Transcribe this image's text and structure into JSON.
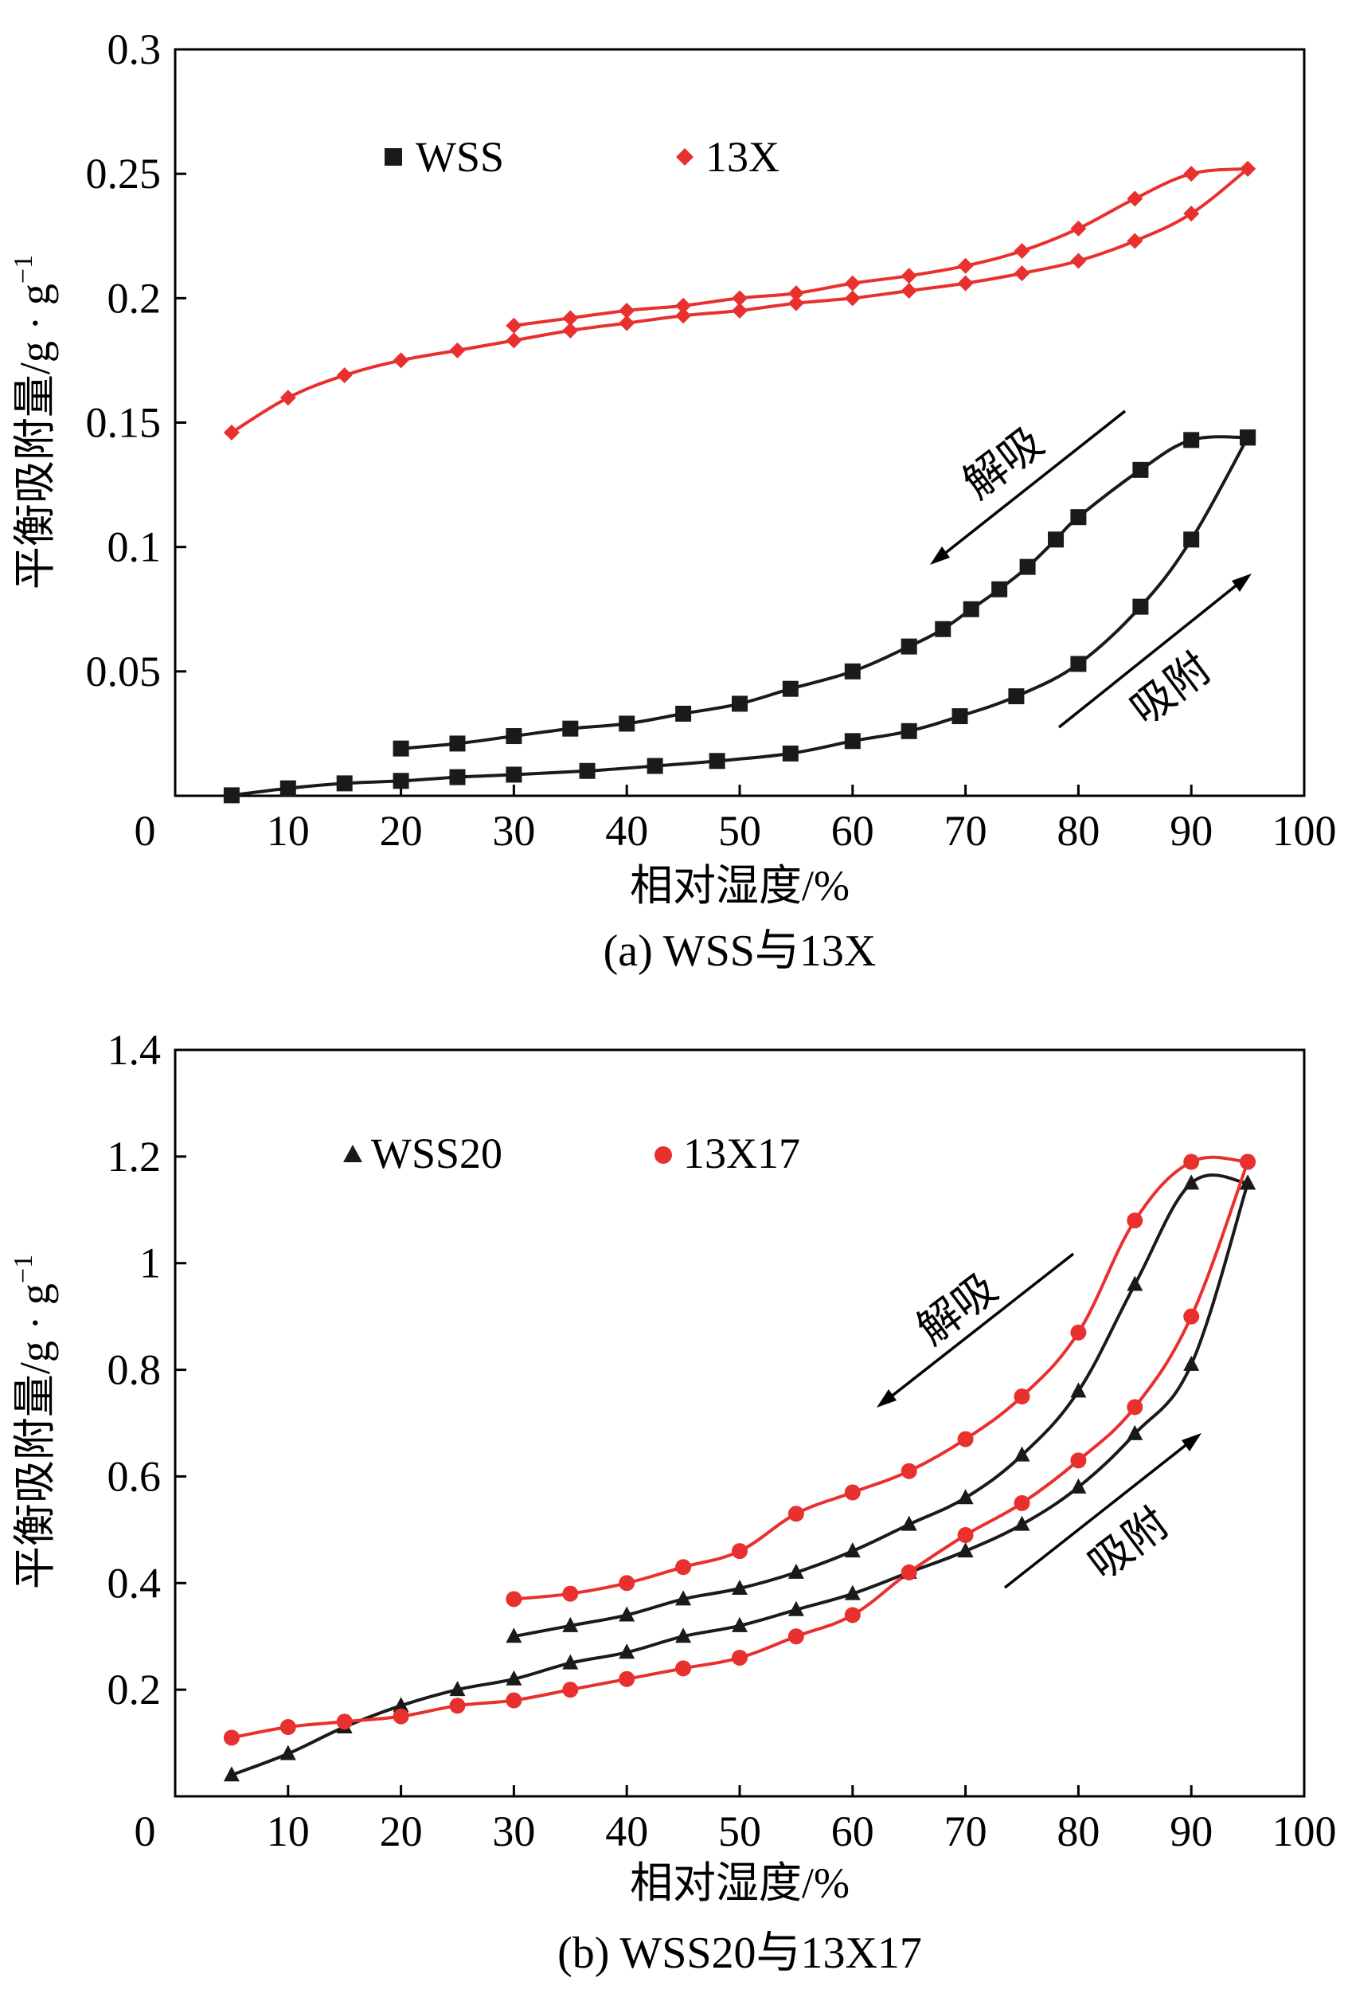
{
  "colors": {
    "black_series": "#1a1a1a",
    "red_series": "#e8302e",
    "axis": "#000000",
    "background": "#ffffff"
  },
  "chart_data": [
    {
      "id": "a",
      "type": "line",
      "caption": "(a) WSS与13X",
      "xlabel": "相对湿度/%",
      "ylabel": "平衡吸附量/g · g",
      "ylabel_superscript": "−1",
      "xlim": [
        0,
        100
      ],
      "ylim": [
        0,
        0.3
      ],
      "xticks": [
        "0",
        "10",
        "20",
        "30",
        "40",
        "50",
        "60",
        "70",
        "80",
        "90",
        "100"
      ],
      "yticks": [
        "0.05",
        "0.1",
        "0.15",
        "0.2",
        "0.25",
        "0.3"
      ],
      "ytick_values": [
        0.05,
        0.1,
        0.15,
        0.2,
        0.25,
        0.3
      ],
      "legend": [
        {
          "label": "WSS",
          "marker": "square",
          "color": "#1a1a1a"
        },
        {
          "label": "13X",
          "marker": "diamond",
          "color": "#e8302e"
        }
      ],
      "annotations": [
        {
          "text": "解吸",
          "arrow": "desorption",
          "direction": "down-left"
        },
        {
          "text": "吸附",
          "arrow": "adsorption",
          "direction": "up-right"
        }
      ],
      "series": [
        {
          "name": "WSS",
          "branch": "adsorption",
          "marker": "square",
          "color": "#1a1a1a",
          "x": [
            5,
            10,
            15,
            20,
            25,
            30,
            36.5,
            42.5,
            48,
            54.5,
            60,
            65,
            69.5,
            74.5,
            80,
            85.5,
            90,
            95
          ],
          "y": [
            0.0002,
            0.003,
            0.005,
            0.006,
            0.0075,
            0.0085,
            0.01,
            0.012,
            0.014,
            0.017,
            0.022,
            0.026,
            0.032,
            0.04,
            0.053,
            0.076,
            0.103,
            0.144
          ]
        },
        {
          "name": "WSS",
          "branch": "desorption",
          "marker": "square",
          "color": "#1a1a1a",
          "x": [
            95,
            90,
            85.5,
            80,
            78,
            75.5,
            73,
            70.5,
            68,
            65,
            60,
            54.5,
            50,
            45,
            40,
            35,
            30,
            25,
            20
          ],
          "y": [
            0.144,
            0.143,
            0.131,
            0.112,
            0.103,
            0.092,
            0.083,
            0.075,
            0.067,
            0.06,
            0.05,
            0.043,
            0.037,
            0.033,
            0.029,
            0.027,
            0.024,
            0.021,
            0.019
          ]
        },
        {
          "name": "13X",
          "branch": "adsorption",
          "marker": "diamond",
          "color": "#e8302e",
          "x": [
            5,
            10,
            15,
            20,
            25,
            30,
            35,
            40,
            45,
            50,
            55,
            60,
            65,
            70,
            75,
            80,
            85,
            90,
            95
          ],
          "y": [
            0.146,
            0.16,
            0.169,
            0.175,
            0.179,
            0.183,
            0.187,
            0.19,
            0.193,
            0.195,
            0.198,
            0.2,
            0.203,
            0.206,
            0.21,
            0.215,
            0.223,
            0.234,
            0.252
          ]
        },
        {
          "name": "13X",
          "branch": "desorption",
          "marker": "diamond",
          "color": "#e8302e",
          "x": [
            95,
            90,
            85,
            80,
            75,
            70,
            65,
            60,
            55,
            50,
            45,
            40,
            35,
            30
          ],
          "y": [
            0.252,
            0.25,
            0.24,
            0.228,
            0.219,
            0.213,
            0.209,
            0.206,
            0.202,
            0.2,
            0.197,
            0.195,
            0.192,
            0.189
          ]
        }
      ]
    },
    {
      "id": "b",
      "type": "line",
      "caption": "(b) WSS20与13X17",
      "xlabel": "相对湿度/%",
      "ylabel": "平衡吸附量/g · g",
      "ylabel_superscript": "−1",
      "xlim": [
        0,
        100
      ],
      "ylim": [
        0,
        1.4
      ],
      "xticks": [
        "0",
        "10",
        "20",
        "30",
        "40",
        "50",
        "60",
        "70",
        "80",
        "90",
        "100"
      ],
      "yticks": [
        "0.2",
        "0.4",
        "0.6",
        "0.8",
        "1",
        "1.2",
        "1.4"
      ],
      "ytick_values": [
        0.2,
        0.4,
        0.6,
        0.8,
        1.0,
        1.2,
        1.4
      ],
      "legend": [
        {
          "label": "WSS20",
          "marker": "triangle",
          "color": "#1a1a1a"
        },
        {
          "label": "13X17",
          "marker": "circle",
          "color": "#e8302e"
        }
      ],
      "annotations": [
        {
          "text": "解吸",
          "arrow": "desorption",
          "direction": "down-left"
        },
        {
          "text": "吸附",
          "arrow": "adsorption",
          "direction": "up-right"
        }
      ],
      "series": [
        {
          "name": "WSS20",
          "branch": "adsorption",
          "marker": "triangle",
          "color": "#1a1a1a",
          "x": [
            5,
            10,
            15,
            20,
            25,
            30,
            35,
            40,
            45,
            50,
            55,
            60,
            65,
            70,
            75,
            80,
            85,
            90,
            95
          ],
          "y": [
            0.04,
            0.08,
            0.13,
            0.17,
            0.2,
            0.22,
            0.25,
            0.27,
            0.3,
            0.32,
            0.35,
            0.38,
            0.42,
            0.46,
            0.51,
            0.58,
            0.68,
            0.81,
            1.15
          ]
        },
        {
          "name": "WSS20",
          "branch": "desorption",
          "marker": "triangle",
          "color": "#1a1a1a",
          "x": [
            95,
            90,
            85,
            80,
            75,
            70,
            65,
            60,
            55,
            50,
            45,
            40,
            35,
            30
          ],
          "y": [
            1.15,
            1.15,
            0.96,
            0.76,
            0.64,
            0.56,
            0.51,
            0.46,
            0.42,
            0.39,
            0.37,
            0.34,
            0.32,
            0.3
          ]
        },
        {
          "name": "13X17",
          "branch": "adsorption",
          "marker": "circle",
          "color": "#e8302e",
          "x": [
            5,
            10,
            15,
            20,
            25,
            30,
            35,
            40,
            45,
            50,
            55,
            60,
            65,
            70,
            75,
            80,
            85,
            90,
            95
          ],
          "y": [
            0.11,
            0.13,
            0.14,
            0.15,
            0.17,
            0.18,
            0.2,
            0.22,
            0.24,
            0.26,
            0.3,
            0.34,
            0.42,
            0.49,
            0.55,
            0.63,
            0.73,
            0.9,
            1.19
          ]
        },
        {
          "name": "13X17",
          "branch": "desorption",
          "marker": "circle",
          "color": "#e8302e",
          "x": [
            95,
            90,
            85,
            80,
            75,
            70,
            65,
            60,
            55,
            50,
            45,
            40,
            35,
            30
          ],
          "y": [
            1.19,
            1.19,
            1.08,
            0.87,
            0.75,
            0.67,
            0.61,
            0.57,
            0.53,
            0.46,
            0.43,
            0.4,
            0.38,
            0.37
          ]
        }
      ]
    }
  ]
}
